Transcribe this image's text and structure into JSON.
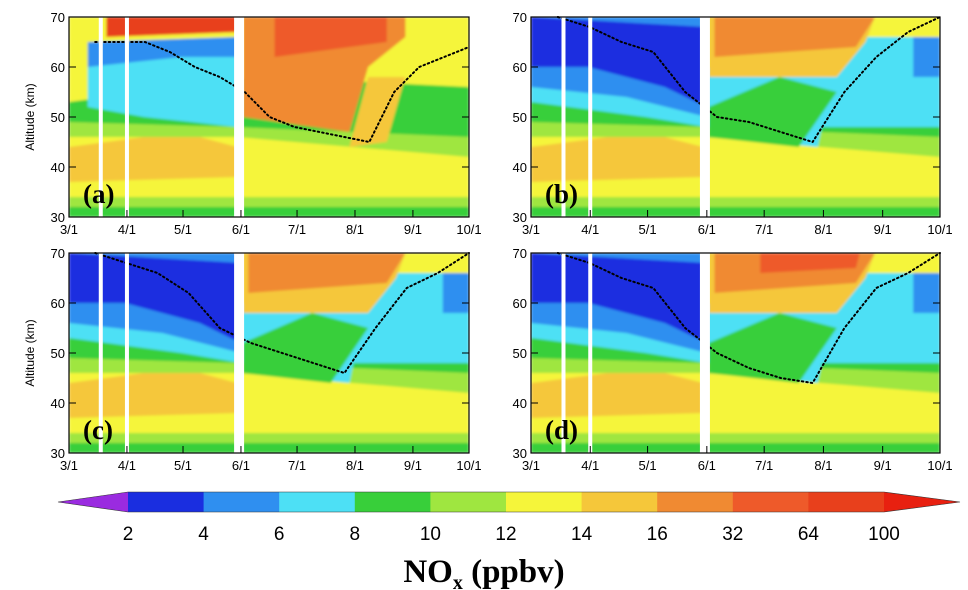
{
  "chart_data": [
    {
      "type": "heatmap",
      "panel_label": "(a)",
      "ylabel": "Altitude (km)",
      "ylim": [
        30,
        70
      ],
      "y_ticks": [
        "30",
        "40",
        "50",
        "60",
        "70"
      ],
      "x_ticks": [
        "3/1",
        "4/1",
        "5/1",
        "6/1",
        "7/1",
        "8/1",
        "9/1",
        "10/1"
      ],
      "data_gaps": [
        "3/18",
        "4/1",
        "5/31"
      ],
      "description_key": "nox_a",
      "dotted_contour_altitude_km": [
        65,
        65,
        65,
        63,
        60,
        58,
        55,
        50,
        48,
        47,
        46,
        45,
        55,
        60,
        62,
        64
      ]
    },
    {
      "type": "heatmap",
      "panel_label": "(b)",
      "ylabel": "",
      "ylim": [
        30,
        70
      ],
      "y_ticks": [
        "30",
        "40",
        "50",
        "60",
        "70"
      ],
      "x_ticks": [
        "3/1",
        "4/1",
        "5/1",
        "6/1",
        "7/1",
        "8/1",
        "9/1",
        "10/1"
      ],
      "data_gaps": [
        "3/18",
        "4/1",
        "5/31"
      ],
      "description_key": "nox_b",
      "dotted_contour_altitude_km": [
        70,
        68,
        65,
        63,
        55,
        50,
        49,
        47,
        45,
        55,
        62,
        67,
        70
      ]
    },
    {
      "type": "heatmap",
      "panel_label": "(c)",
      "ylabel": "Altitude (km)",
      "ylim": [
        30,
        70
      ],
      "y_ticks": [
        "30",
        "40",
        "50",
        "60",
        "70"
      ],
      "x_ticks": [
        "3/1",
        "4/1",
        "5/1",
        "6/1",
        "7/1",
        "8/1",
        "9/1",
        "10/1"
      ],
      "data_gaps": [
        "3/18",
        "4/1",
        "5/31"
      ],
      "description_key": "nox_c",
      "dotted_contour_altitude_km": [
        70,
        68,
        66,
        62,
        55,
        52,
        50,
        48,
        46,
        55,
        63,
        66,
        70
      ]
    },
    {
      "type": "heatmap",
      "panel_label": "(d)",
      "ylabel": "",
      "ylim": [
        30,
        70
      ],
      "y_ticks": [
        "30",
        "40",
        "50",
        "60",
        "70"
      ],
      "x_ticks": [
        "3/1",
        "4/1",
        "5/1",
        "6/1",
        "7/1",
        "8/1",
        "9/1",
        "10/1"
      ],
      "data_gaps": [
        "3/18",
        "4/1",
        "5/31"
      ],
      "description_key": "nox_d",
      "dotted_contour_altitude_km": [
        70,
        68,
        65,
        63,
        55,
        50,
        47,
        45,
        44,
        55,
        63,
        66,
        70
      ]
    }
  ],
  "colorbar": {
    "title_main": "NO",
    "title_sub": "x",
    "title_unit": " (ppbv)",
    "levels": [
      "2",
      "4",
      "6",
      "8",
      "10",
      "12",
      "14",
      "16",
      "32",
      "64",
      "100"
    ],
    "colors": [
      "#9a2be0",
      "#1a2ee0",
      "#2f8ff0",
      "#4de0f5",
      "#38cf3a",
      "#9fe640",
      "#f5f53a",
      "#f5c73a",
      "#f08a32",
      "#ee5a2a",
      "#e8401c",
      "#e82010"
    ]
  }
}
